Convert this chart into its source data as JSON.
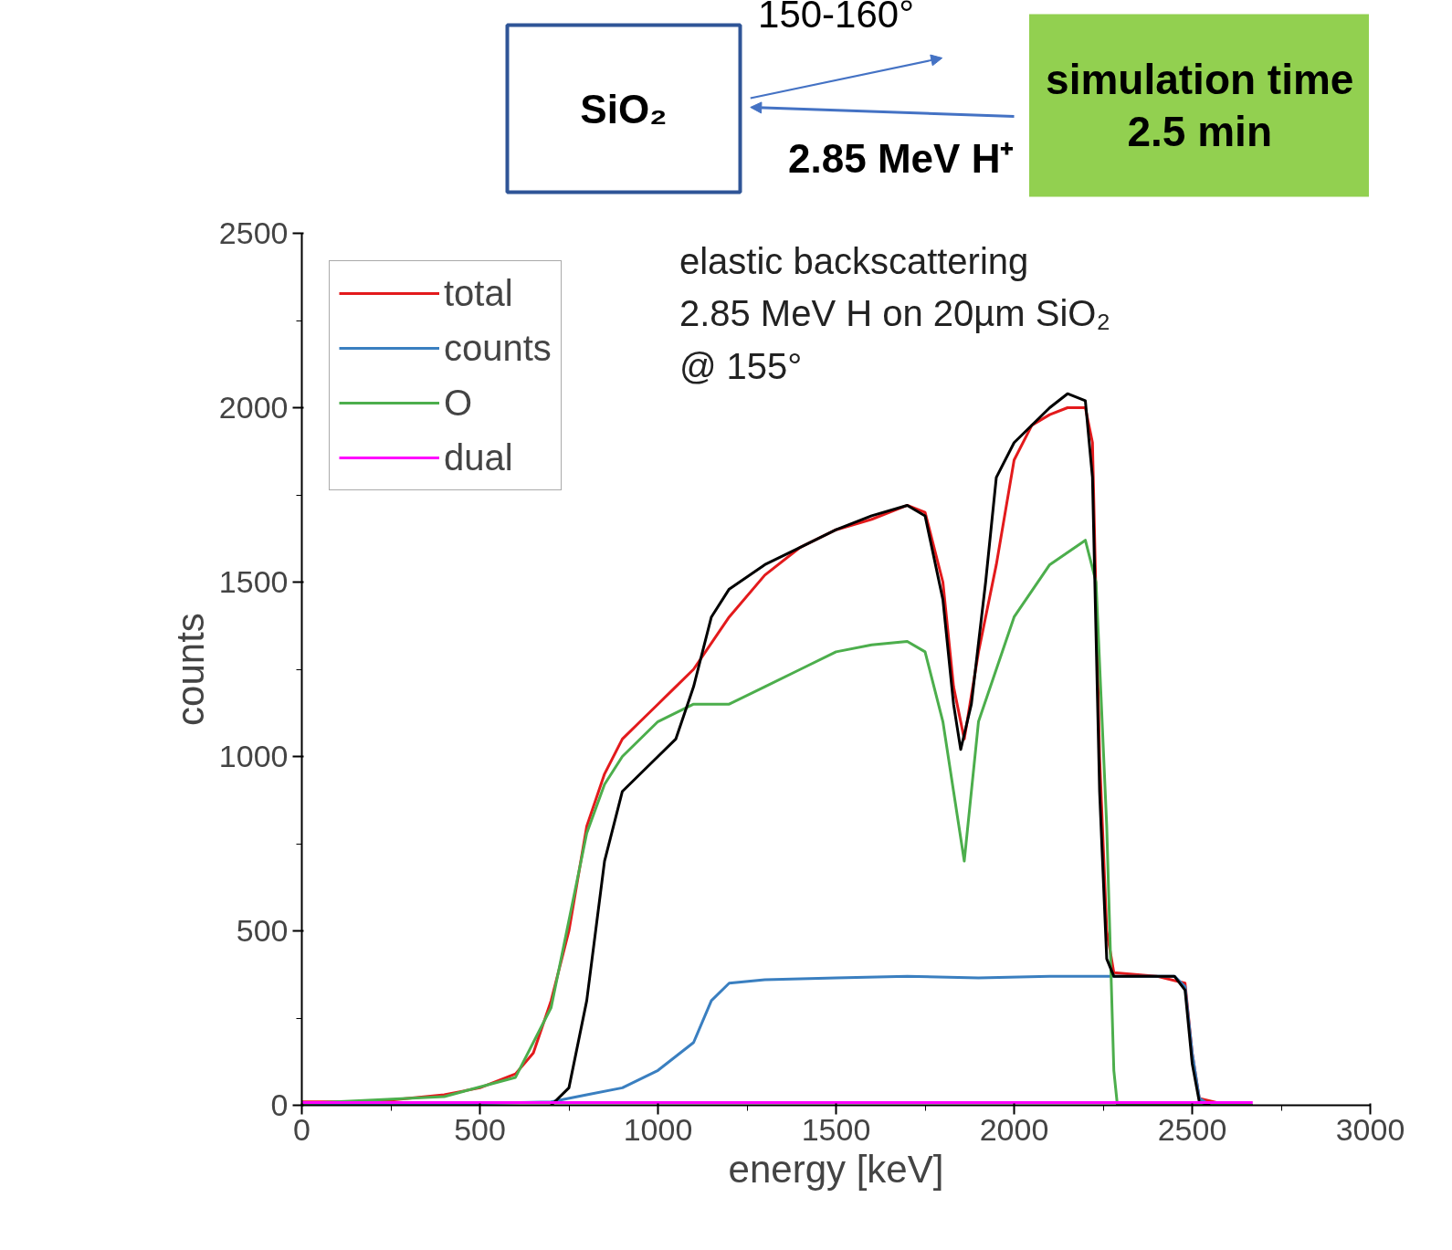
{
  "chart_data": {
    "type": "line",
    "xlabel": "energy [keV]",
    "ylabel": "counts",
    "xlim": [
      0,
      3000
    ],
    "xticks": [
      0,
      500,
      1000,
      1500,
      2000,
      2500,
      3000
    ],
    "ylim": [
      0,
      2500
    ],
    "yticks": [
      0,
      500,
      1000,
      1500,
      2000,
      2500
    ],
    "grid": false,
    "legend": "top left",
    "marker": "none",
    "line_style": "solid",
    "annotations": [
      "SiO₂",
      "150-160°",
      "2.85 MeV H⁺",
      "simulation time\n2.5 min",
      "elastic backscattering\n2.85 MeV H on 20µm SiO₂\n@ 155°"
    ],
    "series": [
      {
        "name": "total",
        "color": "#e31a1c",
        "x": [
          0,
          200,
          400,
          500,
          600,
          650,
          700,
          750,
          800,
          850,
          900,
          950,
          1000,
          1050,
          1100,
          1200,
          1300,
          1400,
          1500,
          1600,
          1700,
          1750,
          1800,
          1830,
          1860,
          1900,
          1950,
          2000,
          2050,
          2100,
          2150,
          2200,
          2220,
          2240,
          2260,
          2280,
          2400,
          2480,
          2500,
          2520,
          2600,
          2670
        ],
        "values": [
          10,
          10,
          30,
          50,
          90,
          150,
          300,
          500,
          800,
          950,
          1050,
          1100,
          1150,
          1200,
          1250,
          1400,
          1520,
          1600,
          1650,
          1680,
          1720,
          1700,
          1500,
          1200,
          1050,
          1300,
          1550,
          1850,
          1950,
          1980,
          2000,
          2000,
          1900,
          1000,
          500,
          380,
          370,
          350,
          150,
          20,
          0,
          0
        ]
      },
      {
        "name": "counts",
        "color": "#3a7fc0",
        "x": [
          0,
          500,
          700,
          800,
          900,
          1000,
          1100,
          1150,
          1200,
          1300,
          1500,
          1700,
          1900,
          2100,
          2300,
          2450,
          2480,
          2500,
          2520,
          2550,
          2670
        ],
        "values": [
          5,
          5,
          10,
          30,
          50,
          100,
          180,
          300,
          350,
          360,
          365,
          370,
          365,
          370,
          370,
          370,
          340,
          150,
          20,
          0,
          0
        ]
      },
      {
        "name": "O",
        "color": "#4cae4c",
        "x": [
          0,
          400,
          600,
          700,
          800,
          850,
          900,
          1000,
          1100,
          1200,
          1300,
          1400,
          1500,
          1600,
          1700,
          1750,
          1800,
          1830,
          1860,
          1900,
          1950,
          2000,
          2100,
          2200,
          2230,
          2260,
          2280,
          2290,
          2670
        ],
        "values": [
          5,
          25,
          80,
          280,
          780,
          920,
          1000,
          1100,
          1150,
          1150,
          1200,
          1250,
          1300,
          1320,
          1330,
          1300,
          1100,
          900,
          700,
          1100,
          1250,
          1400,
          1550,
          1620,
          1500,
          800,
          100,
          0,
          0
        ]
      },
      {
        "color": "#000000",
        "x": [
          700,
          750,
          800,
          850,
          900,
          1000,
          1050,
          1100,
          1150,
          1200,
          1300,
          1400,
          1500,
          1600,
          1700,
          1750,
          1800,
          1830,
          1850,
          1880,
          1920,
          1950,
          2000,
          2100,
          2150,
          2200,
          2220,
          2240,
          2260,
          2280,
          2450,
          2480,
          2500,
          2520,
          2550
        ],
        "values": [
          0,
          50,
          300,
          700,
          900,
          1000,
          1050,
          1200,
          1400,
          1480,
          1550,
          1600,
          1650,
          1690,
          1720,
          1690,
          1450,
          1150,
          1020,
          1150,
          1500,
          1800,
          1900,
          2000,
          2040,
          2020,
          1800,
          900,
          420,
          370,
          370,
          330,
          120,
          10,
          0
        ]
      },
      {
        "name": "dual",
        "color": "#ff00ff",
        "x": [
          0,
          2670
        ],
        "values": [
          8,
          8
        ]
      }
    ]
  }
}
